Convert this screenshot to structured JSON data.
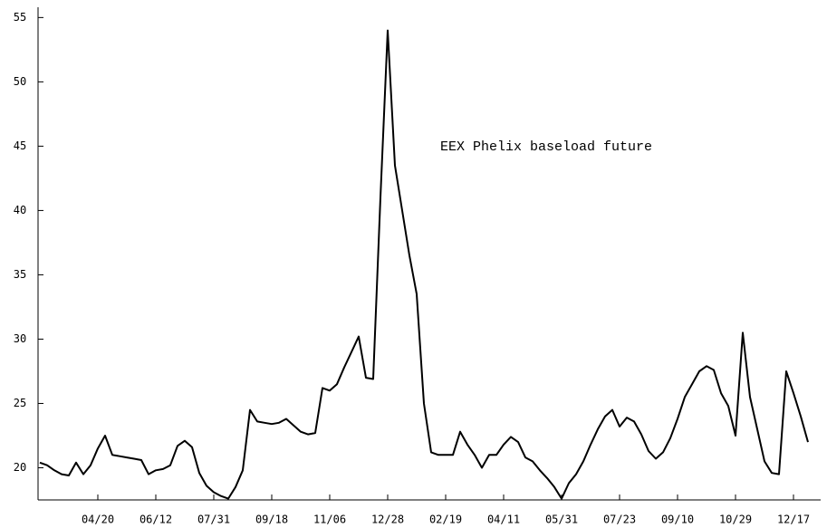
{
  "chart_data": {
    "type": "line",
    "annotation": "EEX Phelix baseload future",
    "categories": [
      null,
      null,
      null,
      null,
      null,
      null,
      null,
      null,
      "04/20",
      null,
      null,
      null,
      null,
      null,
      null,
      null,
      "06/12",
      null,
      null,
      null,
      null,
      null,
      null,
      null,
      "07/31",
      null,
      null,
      null,
      null,
      null,
      null,
      null,
      "09/18",
      null,
      null,
      null,
      null,
      null,
      null,
      null,
      "11/06",
      null,
      null,
      null,
      null,
      null,
      null,
      null,
      "12/28",
      null,
      null,
      null,
      null,
      null,
      null,
      null,
      "02/19",
      null,
      null,
      null,
      null,
      null,
      null,
      null,
      "04/11",
      null,
      null,
      null,
      null,
      null,
      null,
      null,
      "05/31",
      null,
      null,
      null,
      null,
      null,
      null,
      null,
      "07/23",
      null,
      null,
      null,
      null,
      null,
      null,
      null,
      "09/10",
      null,
      null,
      null,
      null,
      null,
      null,
      null,
      "10/29",
      null,
      null,
      null,
      null,
      null,
      null,
      null,
      "12/17",
      null,
      null
    ],
    "series": [
      {
        "color": "#000000",
        "values": [
          20.4,
          20.2,
          19.8,
          19.5,
          19.4,
          20.4,
          19.5,
          20.2,
          21.5,
          22.5,
          21.0,
          20.9,
          20.8,
          20.7,
          20.6,
          19.5,
          19.8,
          19.9,
          20.2,
          21.7,
          22.1,
          21.6,
          19.6,
          18.6,
          18.1,
          17.8,
          17.6,
          18.5,
          19.8,
          24.5,
          23.6,
          23.5,
          23.4,
          23.5,
          23.8,
          23.3,
          22.8,
          22.6,
          22.7,
          26.2,
          26.0,
          26.5,
          27.8,
          29.0,
          30.2,
          27.0,
          26.9,
          41.0,
          54.0,
          43.5,
          40.0,
          36.5,
          33.5,
          25.0,
          21.2,
          21.0,
          21.0,
          21.0,
          22.8,
          21.8,
          21.0,
          20.0,
          21.0,
          21.0,
          21.8,
          22.4,
          22.0,
          20.8,
          20.5,
          19.8,
          19.2,
          18.5,
          17.6,
          18.8,
          19.5,
          20.5,
          21.8,
          23.0,
          24.0,
          24.5,
          23.2,
          23.9,
          23.6,
          22.6,
          21.3,
          20.7,
          21.2,
          22.3,
          23.8,
          25.5,
          26.5,
          27.5,
          27.9,
          27.6,
          25.8,
          24.8,
          22.5,
          30.5,
          25.5,
          23.0,
          20.5,
          19.6,
          19.5,
          27.5,
          25.8,
          24.0,
          22.0
        ]
      }
    ],
    "ylim": [
      17.5,
      55.8
    ],
    "yticks": [
      20,
      25,
      30,
      35,
      40,
      45,
      50,
      55
    ],
    "grid": false
  }
}
